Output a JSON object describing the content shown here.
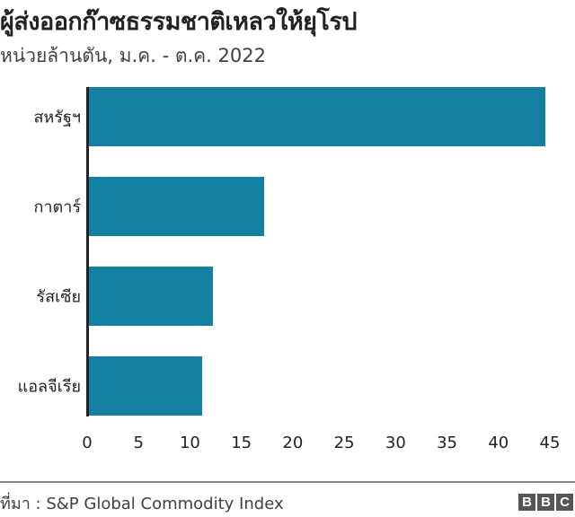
{
  "header": {
    "title": "ผู้ส่งออกก๊าซธรรมชาติเหลวให้ยุโรป",
    "subtitle": "หน่วยล้านตัน, ม.ค. - ต.ค. 2022"
  },
  "footer": {
    "source": "ที่มา : S&P Global Commodity Index",
    "logo": [
      "B",
      "B",
      "C"
    ]
  },
  "colors": {
    "bar": "#1380A1",
    "axis": "#222222"
  },
  "chart_data": {
    "type": "bar",
    "orientation": "horizontal",
    "title": "ผู้ส่งออกก๊าซธรรมชาติเหลวให้ยุโรป",
    "subtitle": "หน่วยล้านตัน, ม.ค. - ต.ค. 2022",
    "categories": [
      "สหรัฐฯ",
      "กาตาร์",
      "รัสเซีย",
      "แอลจีเรีย"
    ],
    "values": [
      44.6,
      17.2,
      12.2,
      11.2
    ],
    "xlabel": "",
    "ylabel": "",
    "xlim": [
      0,
      45
    ],
    "xticks": [
      "0",
      "5",
      "10",
      "15",
      "20",
      "25",
      "30",
      "35",
      "40",
      "45"
    ],
    "grid": false,
    "legend": null,
    "source": "ที่มา : S&P Global Commodity Index"
  }
}
